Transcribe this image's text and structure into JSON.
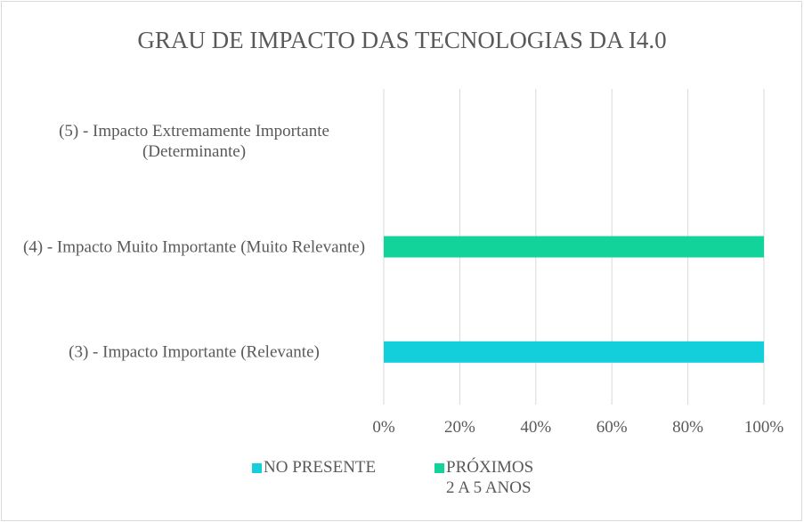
{
  "chart_data": {
    "type": "stacked_bar_horizontal",
    "title": "GRAU DE IMPACTO DAS TECNOLOGIAS DA I4.0",
    "categories": [
      "(3) - Impacto Importante (Relevante)",
      "(4) - Impacto Muito Importante (Muito Relevante)",
      "(5) - Impacto Extremamente Importante (Determinante)"
    ],
    "series": [
      {
        "name": "NO PRESENTE",
        "color": "#13cfdc",
        "values": [
          100,
          0,
          0
        ]
      },
      {
        "name": "PRÓXIMOS 2 A 5 ANOS",
        "color": "#12d39a",
        "values": [
          0,
          100,
          0
        ]
      }
    ],
    "xlim": [
      0,
      100
    ],
    "xticks": [
      {
        "value": 0,
        "label": "0%"
      },
      {
        "value": 20,
        "label": "20%"
      },
      {
        "value": 40,
        "label": "40%"
      },
      {
        "value": 60,
        "label": "60%"
      },
      {
        "value": 80,
        "label": "80%"
      },
      {
        "value": 100,
        "label": "100%"
      }
    ],
    "grid": true,
    "legend": "bottom"
  }
}
